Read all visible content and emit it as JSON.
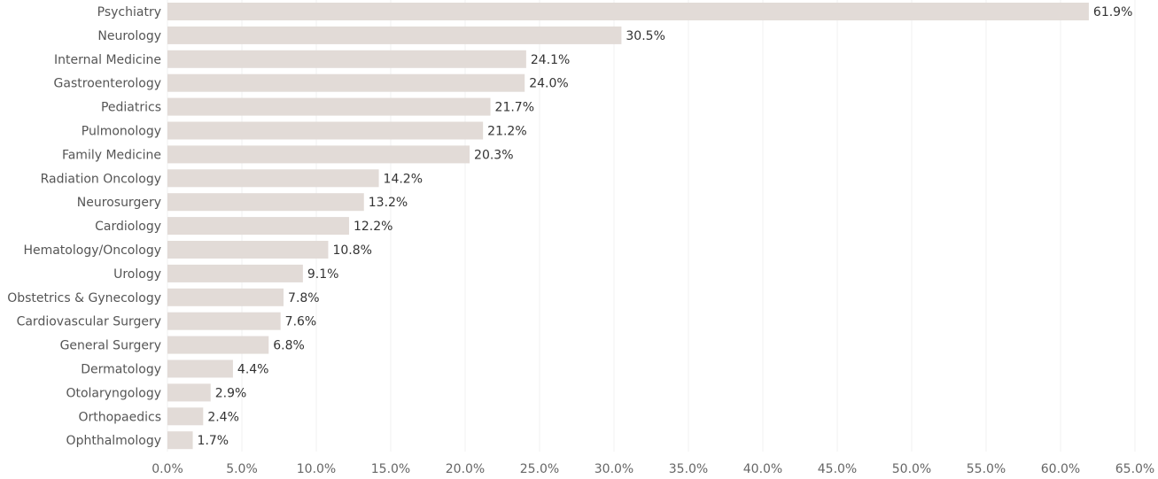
{
  "chart_data": {
    "type": "bar",
    "orientation": "horizontal",
    "categories": [
      "Psychiatry",
      "Neurology",
      "Internal Medicine",
      "Gastroenterology",
      "Pediatrics",
      "Pulmonology",
      "Family Medicine",
      "Radiation Oncology",
      "Neurosurgery",
      "Cardiology",
      "Hematology/Oncology",
      "Urology",
      "Obstetrics & Gynecology",
      "Cardiovascular Surgery",
      "General Surgery",
      "Dermatology",
      "Otolaryngology",
      "Orthopaedics",
      "Ophthalmology"
    ],
    "values": [
      61.9,
      30.5,
      24.1,
      24.0,
      21.7,
      21.2,
      20.3,
      14.2,
      13.2,
      12.2,
      10.8,
      9.1,
      7.8,
      7.6,
      6.8,
      4.4,
      2.9,
      2.4,
      1.7
    ],
    "value_labels": [
      "61.9%",
      "30.5%",
      "24.1%",
      "24.0%",
      "21.7%",
      "21.2%",
      "20.3%",
      "14.2%",
      "13.2%",
      "12.2%",
      "10.8%",
      "9.1%",
      "7.8%",
      "7.6%",
      "6.8%",
      "4.4%",
      "2.9%",
      "2.4%",
      "1.7%"
    ],
    "xlim": [
      0,
      65
    ],
    "x_ticks": [
      0,
      5,
      10,
      15,
      20,
      25,
      30,
      35,
      40,
      45,
      50,
      55,
      60,
      65
    ],
    "x_tick_labels": [
      "0.0%",
      "5.0%",
      "10.0%",
      "15.0%",
      "20.0%",
      "25.0%",
      "30.0%",
      "35.0%",
      "40.0%",
      "45.0%",
      "50.0%",
      "55.0%",
      "60.0%",
      "65.0%"
    ],
    "title": "",
    "xlabel": "",
    "ylabel": "",
    "grid": true,
    "bar_color": "#e2dbd7",
    "label_color": "#555555"
  }
}
